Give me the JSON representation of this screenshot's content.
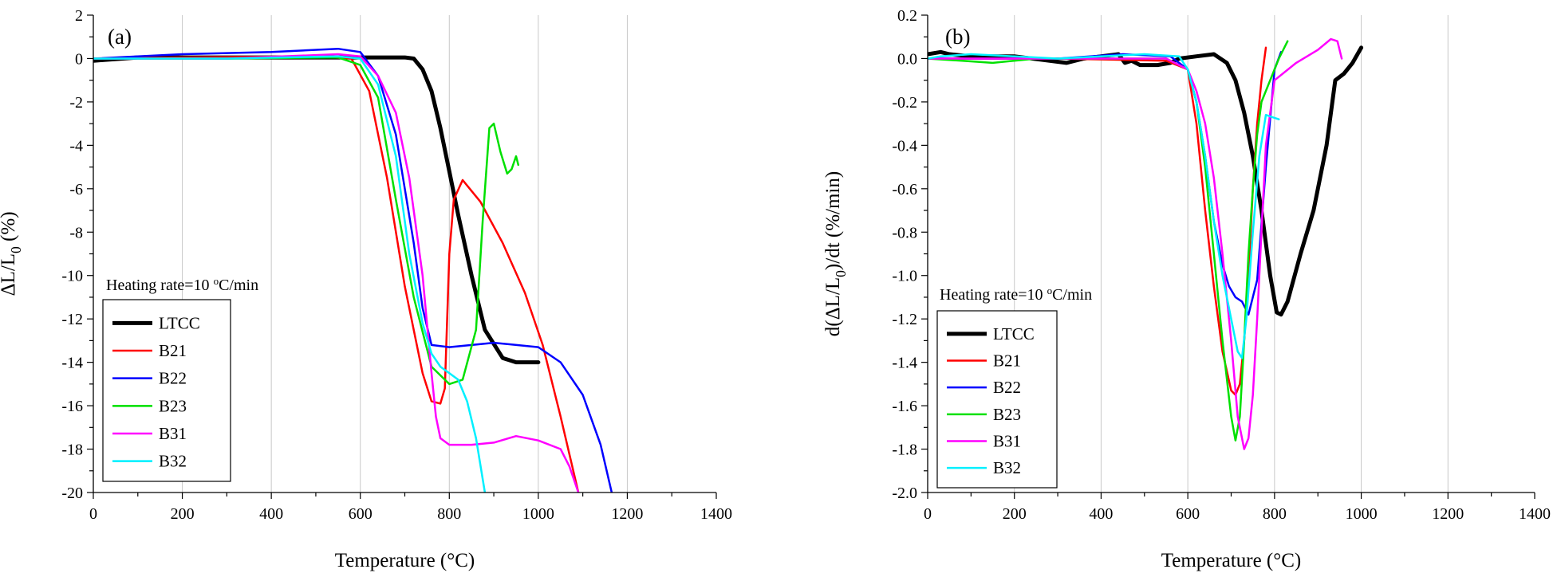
{
  "chart_data": [
    {
      "type": "line",
      "panel_label": "(a)",
      "xlabel": "Temperature (°C)",
      "ylabel": "ΔL/L₀ (%)",
      "xlim": [
        0,
        1400
      ],
      "ylim": [
        -20,
        2
      ],
      "xticks": [
        0,
        200,
        400,
        600,
        800,
        1000,
        1200,
        1400
      ],
      "yticks": [
        -20,
        -18,
        -16,
        -14,
        -12,
        -10,
        -8,
        -6,
        -4,
        -2,
        0,
        2
      ],
      "tick_decimals": 0,
      "grid": "vertical",
      "legend_position": "bottom-left",
      "annotation": "Heating rate=10 °C/min",
      "series": [
        {
          "name": "LTCC",
          "color": "#000000",
          "width": 5,
          "x": [
            0,
            100,
            300,
            500,
            600,
            650,
            700,
            720,
            740,
            760,
            780,
            800,
            820,
            850,
            880,
            920,
            950,
            980,
            1000
          ],
          "y": [
            -0.1,
            0.05,
            0.05,
            0.05,
            0.05,
            0.05,
            0.05,
            0,
            -0.5,
            -1.5,
            -3.2,
            -5.2,
            -7.2,
            -10.0,
            -12.5,
            -13.8,
            -14.0,
            -14.0,
            -14.0
          ]
        },
        {
          "name": "B21",
          "color": "#ff0000",
          "width": 2.5,
          "x": [
            0,
            200,
            500,
            580,
            620,
            660,
            700,
            740,
            760,
            780,
            790,
            800,
            810,
            830,
            870,
            920,
            970,
            1010,
            1050,
            1090
          ],
          "y": [
            0,
            0.05,
            0.1,
            0,
            -1.5,
            -5.5,
            -10.5,
            -14.5,
            -15.8,
            -15.9,
            -15.2,
            -9.0,
            -6.5,
            -5.6,
            -6.6,
            -8.5,
            -10.8,
            -13.2,
            -16.5,
            -20
          ]
        },
        {
          "name": "B22",
          "color": "#0000ff",
          "width": 2.5,
          "x": [
            0,
            200,
            400,
            550,
            600,
            640,
            680,
            720,
            740,
            760,
            800,
            900,
            1000,
            1050,
            1100,
            1140,
            1165
          ],
          "y": [
            0,
            0.2,
            0.3,
            0.45,
            0.3,
            -0.8,
            -3.5,
            -8.5,
            -11.5,
            -13.2,
            -13.3,
            -13.1,
            -13.3,
            -14.0,
            -15.5,
            -17.8,
            -20
          ]
        },
        {
          "name": "B23",
          "color": "#00e000",
          "width": 2.5,
          "x": [
            0,
            300,
            550,
            600,
            640,
            680,
            720,
            760,
            800,
            830,
            860,
            875,
            890,
            900,
            915,
            930,
            940,
            950,
            955
          ],
          "y": [
            0,
            0,
            0.05,
            -0.3,
            -1.8,
            -6.5,
            -11.0,
            -14.2,
            -15.0,
            -14.8,
            -12.5,
            -7.5,
            -3.2,
            -3.0,
            -4.3,
            -5.3,
            -5.1,
            -4.5,
            -4.9
          ]
        },
        {
          "name": "B31",
          "color": "#ff00ff",
          "width": 2.5,
          "x": [
            0,
            300,
            550,
            600,
            640,
            680,
            710,
            740,
            760,
            770,
            780,
            800,
            850,
            900,
            950,
            1000,
            1050,
            1070,
            1090
          ],
          "y": [
            0,
            0,
            0.2,
            0.1,
            -0.8,
            -2.5,
            -5.5,
            -10.0,
            -14.5,
            -16.5,
            -17.5,
            -17.8,
            -17.8,
            -17.7,
            -17.4,
            -17.6,
            -18.0,
            -18.8,
            -20
          ]
        },
        {
          "name": "B32",
          "color": "#00f0ff",
          "width": 2.5,
          "x": [
            0,
            300,
            550,
            600,
            640,
            680,
            710,
            740,
            760,
            780,
            800,
            820,
            840,
            860,
            880
          ],
          "y": [
            0,
            0,
            0.1,
            0,
            -1.2,
            -4.5,
            -9.0,
            -12.2,
            -13.6,
            -14.2,
            -14.5,
            -14.8,
            -15.8,
            -17.5,
            -20
          ]
        }
      ]
    },
    {
      "type": "line",
      "panel_label": "(b)",
      "xlabel": "Temperature (°C)",
      "ylabel": "d(ΔL/L₀)/dt (%/min)",
      "xlim": [
        0,
        1400
      ],
      "ylim": [
        -2.0,
        0.2
      ],
      "xticks": [
        0,
        200,
        400,
        600,
        800,
        1000,
        1200,
        1400
      ],
      "yticks": [
        -2.0,
        -1.8,
        -1.6,
        -1.4,
        -1.2,
        -1.0,
        -0.8,
        -0.6,
        -0.4,
        -0.2,
        0.0,
        0.2
      ],
      "tick_decimals": 1,
      "grid": "vertical",
      "legend_position": "bottom-left",
      "annotation": "Heating rate=10 °C/min",
      "series": [
        {
          "name": "LTCC",
          "color": "#000000",
          "width": 5,
          "x": [
            0,
            30,
            50,
            100,
            200,
            280,
            320,
            360,
            400,
            440,
            455,
            470,
            490,
            530,
            560,
            580,
            620,
            660,
            690,
            710,
            730,
            750,
            770,
            790,
            805,
            815,
            830,
            860,
            890,
            920,
            940,
            960,
            980,
            1000
          ],
          "y": [
            0.02,
            0.03,
            0.02,
            0.01,
            0.01,
            -0.01,
            -0.02,
            0,
            0.01,
            0.02,
            -0.02,
            -0.01,
            -0.03,
            -0.03,
            -0.02,
            0,
            0.01,
            0.02,
            -0.02,
            -0.1,
            -0.25,
            -0.45,
            -0.7,
            -1.0,
            -1.17,
            -1.18,
            -1.12,
            -0.9,
            -0.7,
            -0.4,
            -0.1,
            -0.07,
            -0.02,
            0.05
          ]
        },
        {
          "name": "B21",
          "color": "#ff0000",
          "width": 2.5,
          "x": [
            0,
            300,
            550,
            600,
            620,
            640,
            660,
            680,
            700,
            710,
            720,
            730,
            740,
            750,
            760,
            770,
            780
          ],
          "y": [
            0,
            0,
            -0.01,
            -0.05,
            -0.3,
            -0.7,
            -1.05,
            -1.35,
            -1.53,
            -1.55,
            -1.5,
            -1.3,
            -1.0,
            -0.6,
            -0.3,
            -0.1,
            0.05
          ]
        },
        {
          "name": "B22",
          "color": "#0000ff",
          "width": 2.5,
          "x": [
            0,
            300,
            450,
            560,
            600,
            620,
            640,
            660,
            680,
            695,
            710,
            725,
            740,
            760,
            780,
            800,
            815
          ],
          "y": [
            0,
            0,
            0.02,
            0.01,
            -0.05,
            -0.2,
            -0.45,
            -0.75,
            -0.95,
            -1.05,
            -1.1,
            -1.12,
            -1.18,
            -1.02,
            -0.5,
            -0.05,
            0.03
          ]
        },
        {
          "name": "B23",
          "color": "#00e000",
          "width": 2.5,
          "x": [
            0,
            80,
            150,
            250,
            400,
            550,
            600,
            620,
            640,
            660,
            680,
            700,
            710,
            720,
            730,
            740,
            750,
            760,
            770,
            790,
            810,
            830
          ],
          "y": [
            0,
            -0.01,
            -0.02,
            0,
            0,
            0,
            -0.05,
            -0.2,
            -0.5,
            -0.9,
            -1.3,
            -1.65,
            -1.76,
            -1.65,
            -1.3,
            -0.9,
            -0.6,
            -0.35,
            -0.2,
            -0.1,
            0,
            0.08
          ]
        },
        {
          "name": "B31",
          "color": "#ff00ff",
          "width": 2.5,
          "x": [
            0,
            300,
            550,
            600,
            620,
            640,
            660,
            680,
            700,
            715,
            730,
            740,
            750,
            760,
            770,
            780,
            800,
            850,
            900,
            930,
            945,
            955
          ],
          "y": [
            0,
            0,
            0,
            -0.05,
            -0.15,
            -0.3,
            -0.55,
            -0.9,
            -1.3,
            -1.65,
            -1.8,
            -1.75,
            -1.55,
            -1.2,
            -0.8,
            -0.4,
            -0.1,
            -0.02,
            0.04,
            0.09,
            0.08,
            0
          ]
        },
        {
          "name": "B32",
          "color": "#00f0ff",
          "width": 2.5,
          "x": [
            0,
            30,
            100,
            300,
            500,
            580,
            600,
            620,
            640,
            660,
            680,
            700,
            715,
            725,
            735,
            750,
            765,
            780,
            795,
            810
          ],
          "y": [
            0,
            0.01,
            0.02,
            0,
            0.02,
            0.01,
            -0.05,
            -0.2,
            -0.45,
            -0.75,
            -1.0,
            -1.2,
            -1.35,
            -1.38,
            -1.2,
            -0.8,
            -0.45,
            -0.26,
            -0.27,
            -0.28
          ]
        }
      ]
    }
  ]
}
